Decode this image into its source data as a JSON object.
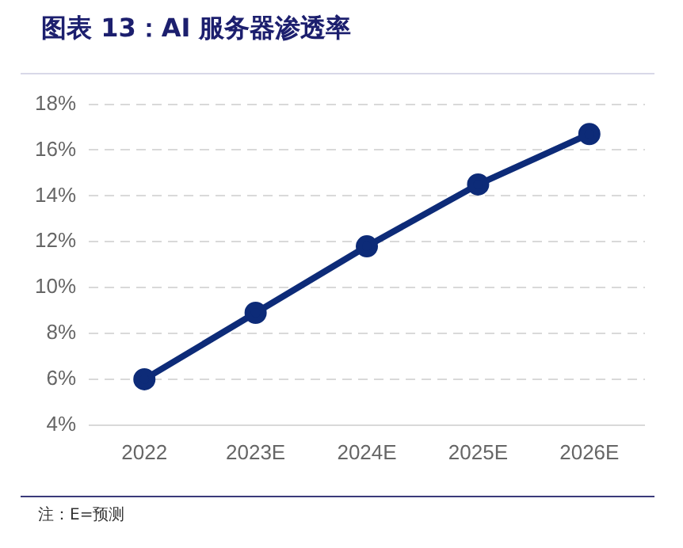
{
  "chart_data": {
    "type": "line",
    "title": "图表 13：AI 服务器渗透率",
    "categories": [
      "2022",
      "2023E",
      "2024E",
      "2025E",
      "2026E"
    ],
    "series": [
      {
        "color": "#0d2b78",
        "values": [
          6.0,
          8.9,
          11.8,
          14.5,
          16.7
        ]
      }
    ],
    "ylim": [
      4,
      18
    ],
    "yticks": [
      {
        "value": 4,
        "label": "4%"
      },
      {
        "value": 6,
        "label": "6%"
      },
      {
        "value": 8,
        "label": "8%"
      },
      {
        "value": 10,
        "label": "10%"
      },
      {
        "value": 12,
        "label": "12%"
      },
      {
        "value": 14,
        "label": "14%"
      },
      {
        "value": 16,
        "label": "16%"
      },
      {
        "value": 18,
        "label": "18%"
      }
    ],
    "grid": "y",
    "marker": "circle",
    "line_style": "solid",
    "legend": false,
    "annotations": [
      "注：E=预测"
    ]
  }
}
